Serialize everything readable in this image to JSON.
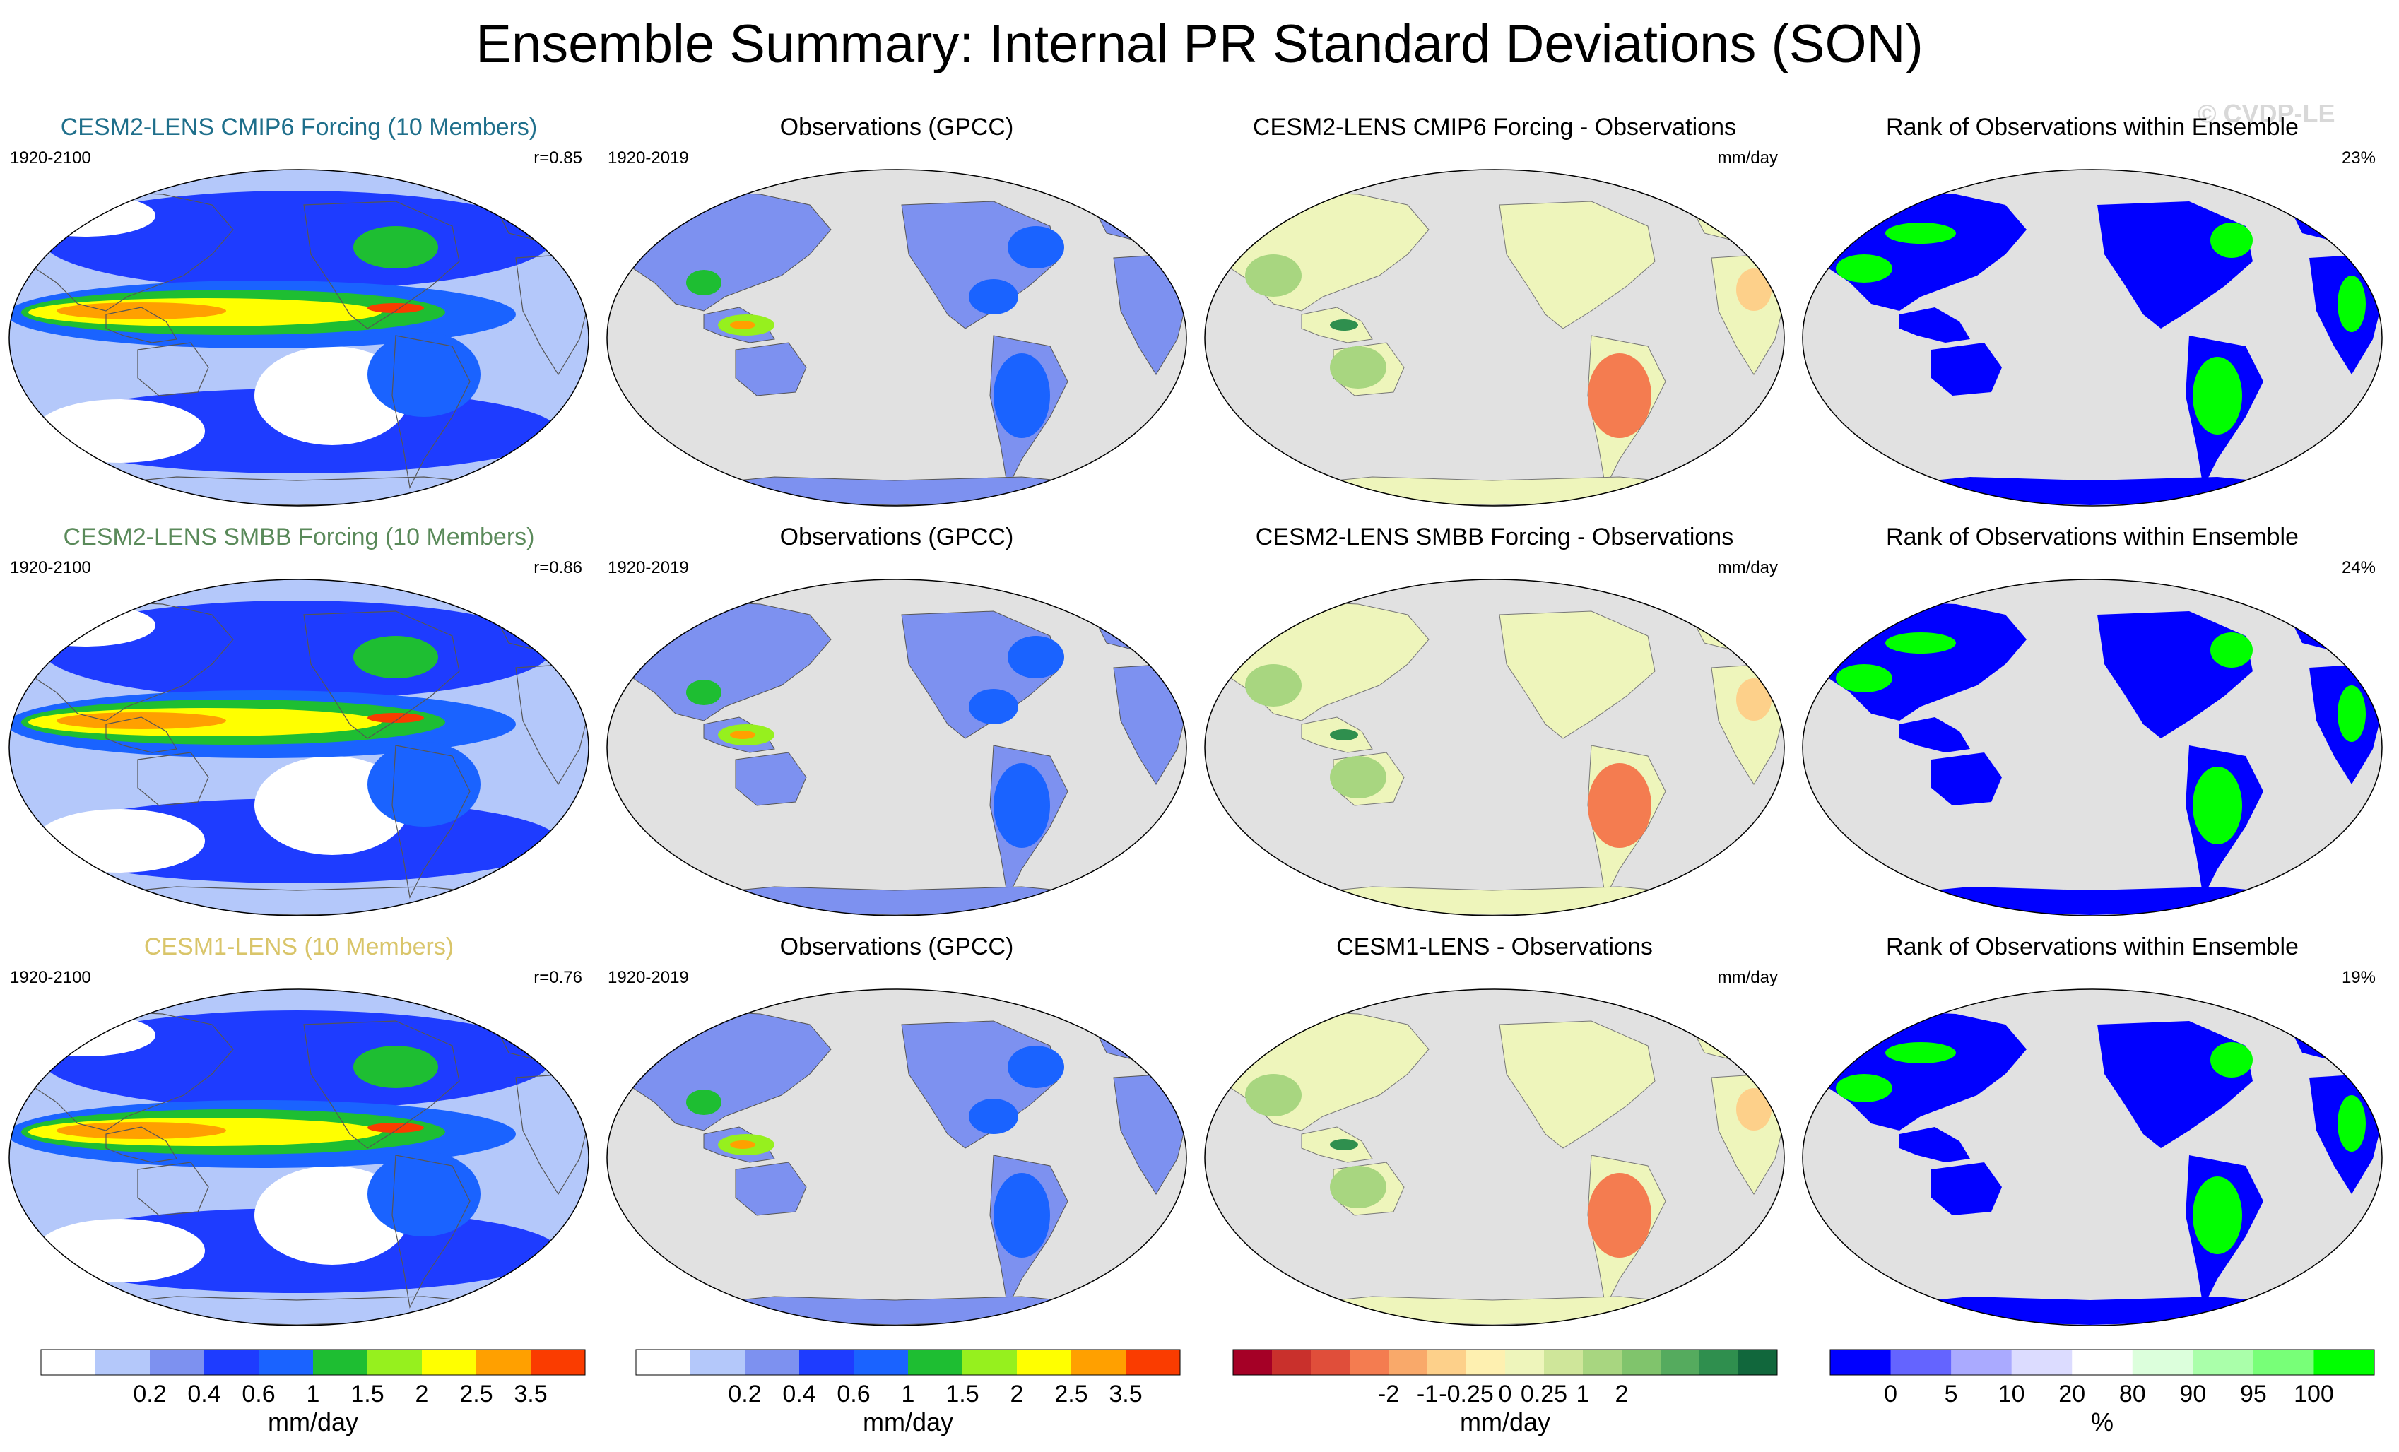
{
  "figure": {
    "title": "Ensemble Summary: Internal PR Standard Deviations (SON)",
    "watermark": "© CVDP-LE"
  },
  "colors": {
    "model_title_colors": [
      "#1f6f8b",
      "#5a8a5a",
      "#d9c56a"
    ],
    "ocean_gray": "#e1e1e1",
    "coast": "#555555"
  },
  "chart_data": [
    {
      "type": "heatmap",
      "panels": [
        {
          "id": "r1c1",
          "title": "CESM2-LENS CMIP6 Forcing (10 Members)",
          "left_label": "1920-2100",
          "right_label": "r=0.85",
          "kind": "model"
        },
        {
          "id": "r1c2",
          "title": "Observations (GPCC)",
          "left_label": "1920-2019",
          "right_label": "",
          "kind": "obs"
        },
        {
          "id": "r1c3",
          "title": "CESM2-LENS CMIP6 Forcing - Observations",
          "left_label": "",
          "right_label": "mm/day",
          "kind": "diff"
        },
        {
          "id": "r1c4",
          "title": "Rank of Observations within Ensemble",
          "left_label": "",
          "right_label": "23%",
          "kind": "rank"
        },
        {
          "id": "r2c1",
          "title": "CESM2-LENS SMBB Forcing (10 Members)",
          "left_label": "1920-2100",
          "right_label": "r=0.86",
          "kind": "model"
        },
        {
          "id": "r2c2",
          "title": "Observations (GPCC)",
          "left_label": "1920-2019",
          "right_label": "",
          "kind": "obs"
        },
        {
          "id": "r2c3",
          "title": "CESM2-LENS SMBB Forcing - Observations",
          "left_label": "",
          "right_label": "mm/day",
          "kind": "diff"
        },
        {
          "id": "r2c4",
          "title": "Rank of Observations within Ensemble",
          "left_label": "",
          "right_label": "24%",
          "kind": "rank"
        },
        {
          "id": "r3c1",
          "title": "CESM1-LENS (10 Members)",
          "left_label": "1920-2100",
          "right_label": "r=0.76",
          "kind": "model"
        },
        {
          "id": "r3c2",
          "title": "Observations (GPCC)",
          "left_label": "1920-2019",
          "right_label": "",
          "kind": "obs"
        },
        {
          "id": "r3c3",
          "title": "CESM1-LENS - Observations",
          "left_label": "",
          "right_label": "mm/day",
          "kind": "diff"
        },
        {
          "id": "r3c4",
          "title": "Rank of Observations within Ensemble",
          "left_label": "",
          "right_label": "19%",
          "kind": "rank"
        }
      ]
    }
  ],
  "colorbars": [
    {
      "id": "stddev-model",
      "units": "mm/day",
      "labels": [
        "0.2",
        "0.4",
        "0.6",
        "1",
        "1.5",
        "2",
        "2.5",
        "3.5"
      ],
      "colors": [
        "#ffffff",
        "#b4c8fa",
        "#7d91f0",
        "#1e3cff",
        "#1a63ff",
        "#1ebe32",
        "#96f01e",
        "#ffff00",
        "#ffa000",
        "#fa3c00"
      ]
    },
    {
      "id": "stddev-obs",
      "units": "mm/day",
      "labels": [
        "0.2",
        "0.4",
        "0.6",
        "1",
        "1.5",
        "2",
        "2.5",
        "3.5"
      ],
      "colors": [
        "#ffffff",
        "#b4c8fa",
        "#7d91f0",
        "#1e3cff",
        "#1a63ff",
        "#1ebe32",
        "#96f01e",
        "#ffff00",
        "#ffa000",
        "#fa3c00"
      ]
    },
    {
      "id": "difference",
      "units": "mm/day",
      "labels": [
        "-2",
        "-1",
        "-0.25",
        "0",
        "0.25",
        "1",
        "2"
      ],
      "colors": [
        "#a50026",
        "#c9302c",
        "#e04e3a",
        "#f47c50",
        "#f9a96a",
        "#fdd08a",
        "#fef0b0",
        "#eef5bb",
        "#cfe69a",
        "#a8d680",
        "#80c46c",
        "#55ab5e",
        "#2f8f4e",
        "#11673c"
      ]
    },
    {
      "id": "rank",
      "units": "%",
      "labels": [
        "0",
        "5",
        "10",
        "20",
        "80",
        "90",
        "95",
        "100"
      ],
      "colors": [
        "#0000ff",
        "#6464ff",
        "#aaaaff",
        "#dcdcff",
        "#ffffff",
        "#dcffdc",
        "#aaffaa",
        "#78ff78",
        "#00ff00"
      ]
    }
  ]
}
